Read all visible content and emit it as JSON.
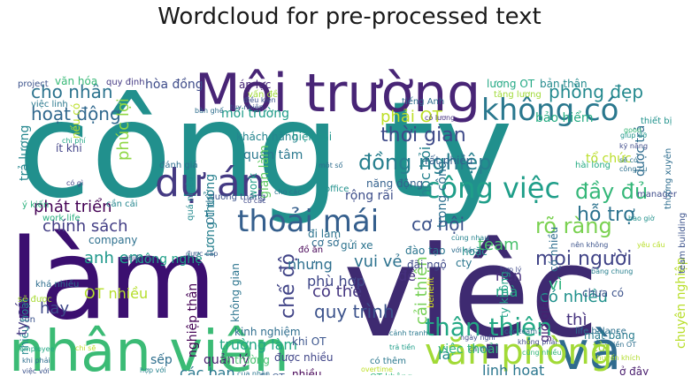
{
  "chart_data": {
    "type": "wordcloud",
    "title": "Wordcloud for pre-processed text",
    "words": [
      {
        "text": "công ty",
        "color": "#21908d"
      },
      {
        "text": "làm",
        "color": "#3b0f70"
      },
      {
        "text": "việc",
        "color": "#3e2a71"
      },
      {
        "text": "nhân viên",
        "color": "#3bbb75"
      },
      {
        "text": "Môi trường",
        "color": "#482576"
      },
      {
        "text": "dự án",
        "color": "#443a83"
      },
      {
        "text": "và",
        "color": "#2f6b8e"
      },
      {
        "text": "văn phòng",
        "color": "#a2da37"
      },
      {
        "text": "không có",
        "color": "#2a788e"
      },
      {
        "text": "công việc",
        "color": "#1f9e89"
      },
      {
        "text": "thoải mái",
        "color": "#355f8d"
      },
      {
        "text": "thân thiện",
        "color": "#23a884"
      },
      {
        "text": "đồng nghiệp",
        "color": "#277f8e"
      },
      {
        "text": "thời gian",
        "color": "#3e4a89"
      },
      {
        "text": "cho nhân",
        "color": "#2c738e"
      },
      {
        "text": "hoạt động",
        "color": "#31688e"
      },
      {
        "text": "mọi người",
        "color": "#414487"
      },
      {
        "text": "rõ ràng",
        "color": "#7ad151"
      },
      {
        "text": "có nhiều",
        "color": "#21918c"
      },
      {
        "text": "cơ hội",
        "color": "#3b528b"
      },
      {
        "text": "chế độ",
        "color": "#414487"
      },
      {
        "text": "quy trình",
        "color": "#3b528b"
      },
      {
        "text": "phòng đẹp",
        "color": "#23898e"
      },
      {
        "text": "đầy đủ",
        "color": "#35b779"
      },
      {
        "text": "hỗ trợ",
        "color": "#2c728e"
      },
      {
        "text": "phát triển",
        "color": "#440154"
      },
      {
        "text": "chính sách",
        "color": "#433e85"
      },
      {
        "text": "phúc lợi",
        "color": "#8fd744"
      },
      {
        "text": "phải OT",
        "color": "#bddf26"
      },
      {
        "text": "anh em",
        "color": "#1f988b"
      },
      {
        "text": "có thể",
        "color": "#453781"
      },
      {
        "text": "cải thiện",
        "color": "#75d054"
      },
      {
        "text": "vui vẻ",
        "color": "#2c728e"
      },
      {
        "text": "OT nhiều",
        "color": "#b5de2b"
      },
      {
        "text": "hay",
        "color": "#3e4989"
      },
      {
        "text": "thì",
        "color": "#46327e"
      },
      {
        "text": "vì",
        "color": "#2db27d"
      },
      {
        "text": "nên",
        "color": "#472d7b"
      },
      {
        "text": "mà",
        "color": "#22a884"
      },
      {
        "text": "team",
        "color": "#4ac16d"
      },
      {
        "text": "học hỏi",
        "color": "#26828e"
      },
      {
        "text": "trong công",
        "color": "#2d708e"
      },
      {
        "text": "có nhiều",
        "color": "#2e6e8e"
      },
      {
        "text": "chuyên nghiệp",
        "color": "#b8de29"
      },
      {
        "text": "giờ giấc",
        "color": "#481f70"
      },
      {
        "text": "linh hoạt",
        "color": "#2a768e"
      },
      {
        "text": "là",
        "color": "#228c8d"
      },
      {
        "text": "việc thoải",
        "color": "#30b47d"
      },
      {
        "text": "các bạn",
        "color": "#2a788e"
      },
      {
        "text": "quản lý",
        "color": "#481b6d"
      },
      {
        "text": "trường làm",
        "color": "#22a785"
      },
      {
        "text": "phù hợp",
        "color": "#3f4788"
      },
      {
        "text": "nhưng",
        "color": "#2e6f8e"
      },
      {
        "text": "công nghệ",
        "color": "#1fa088"
      },
      {
        "text": "nghiệp thân",
        "color": "#440154"
      },
      {
        "text": "mối trường",
        "color": "#1e9c89"
      },
      {
        "text": "quan tâm",
        "color": "#2a788e"
      },
      {
        "text": "gian làm",
        "color": "#5ec962"
      },
      {
        "text": "lương thưởng",
        "color": "#27808e"
      },
      {
        "text": "bảo hiểm",
        "color": "#25ab82"
      },
      {
        "text": "được trả",
        "color": "#2f6c8e"
      },
      {
        "text": "lương OT",
        "color": "#22a884"
      },
      {
        "text": "bản thân",
        "color": "#238a8d"
      },
      {
        "text": "nhiều hoạt",
        "color": "#23898e"
      },
      {
        "text": "ty có",
        "color": "#453882"
      },
      {
        "text": "khá nhiều",
        "color": "#2e6d8e"
      },
      {
        "text": "sẽ được",
        "color": "#a8db34"
      },
      {
        "text": "trả lương",
        "color": "#24878e"
      },
      {
        "text": "hòa đồng",
        "color": "#3e4c8a"
      },
      {
        "text": "văn hóa",
        "color": "#38b977"
      },
      {
        "text": "quy định",
        "color": "#443983"
      },
      {
        "text": "áp lực",
        "color": "#482677"
      },
      {
        "text": "nếu có",
        "color": "#bade28"
      },
      {
        "text": "ít khi",
        "color": "#414287"
      },
      {
        "text": "đánh giá",
        "color": "#2e6e8e"
      },
      {
        "text": "khách hàng",
        "color": "#25858e"
      },
      {
        "text": "hiện tại",
        "color": "#1f958b"
      },
      {
        "text": "thiết bị",
        "color": "#20928c"
      },
      {
        "text": "rất nhiều",
        "color": "#34608d"
      },
      {
        "text": "tổ chức",
        "color": "#bade28"
      },
      {
        "text": "rộng rãi",
        "color": "#3d4e8a"
      },
      {
        "text": "năng động",
        "color": "#34618d"
      },
      {
        "text": "đi làm",
        "color": "#2c738e"
      },
      {
        "text": "cơ sở",
        "color": "#2e6d8e"
      },
      {
        "text": "đồ ăn",
        "color": "#440154"
      },
      {
        "text": "gửi xe",
        "color": "#2c738e"
      },
      {
        "text": "đào tạo",
        "color": "#2b758e"
      },
      {
        "text": "đãi ngộ",
        "color": "#3e4989"
      },
      {
        "text": "cty",
        "color": "#2a768e"
      },
      {
        "text": "hoặc",
        "color": "#21918c"
      },
      {
        "text": "benefit",
        "color": "#d2e21b"
      },
      {
        "text": "đề",
        "color": "#46307e"
      },
      {
        "text": "ty không",
        "color": "#1fa287"
      },
      {
        "text": "không gian",
        "color": "#2b748e"
      },
      {
        "text": "kinh nghiệm",
        "color": "#2e6e8e"
      },
      {
        "text": "khi OT",
        "color": "#3a548c"
      },
      {
        "text": "được nhiều",
        "color": "#404588"
      },
      {
        "text": "nhiều",
        "color": "#440154"
      },
      {
        "text": "OT thì",
        "color": "#2b758e"
      },
      {
        "text": "company",
        "color": "#2d708e"
      },
      {
        "text": "work",
        "color": "#1f9f88"
      },
      {
        "text": "sếp",
        "color": "#2e6f8e"
      },
      {
        "text": "từ",
        "color": "#a0da39"
      },
      {
        "text": "chưa có",
        "color": "#3b528b"
      },
      {
        "text": "mặt bằng",
        "color": "#287c8e"
      },
      {
        "text": "có thêm",
        "color": "#2a788e"
      },
      {
        "text": "ra trường",
        "color": "#48c16e"
      },
      {
        "text": "độ OT",
        "color": "#38598c"
      },
      {
        "text": "OT không",
        "color": "#30b57b"
      },
      {
        "text": "overtime",
        "color": "#bddf26"
      },
      {
        "text": "ở đây",
        "color": "#481b6d"
      },
      {
        "text": "life balance",
        "color": "#2d708e"
      },
      {
        "text": "team building",
        "color": "#3b528b"
      },
      {
        "text": "manager",
        "color": "#3e4c8a"
      },
      {
        "text": "office",
        "color": "#21918c"
      },
      {
        "text": "project",
        "color": "#3b528b"
      },
      {
        "text": "việc linh",
        "color": "#2a788e"
      },
      {
        "text": "giúp đỡ",
        "color": "#1f958b"
      },
      {
        "text": "thưởng xuyên",
        "color": "#2e6d8e"
      },
      {
        "text": "tiếng Anh",
        "color": "#2e6d8e"
      },
      {
        "text": "cần cải",
        "color": "#24868e"
      },
      {
        "text": "tăng lương",
        "color": "#a0da39"
      },
      {
        "text": "lương tháng",
        "color": "#3b528b"
      },
      {
        "text": "hài lòng",
        "color": "#25ab82"
      },
      {
        "text": "work life",
        "color": "#29af7f"
      },
      {
        "text": "ý kiến",
        "color": "#2db27d"
      },
      {
        "text": "có lương",
        "color": "#46307e"
      },
      {
        "text": "quá nhiều",
        "color": "#23898e"
      },
      {
        "text": "có các",
        "color": "#3f4889"
      },
      {
        "text": "bàn ghế",
        "color": "#2e6e8e"
      },
      {
        "text": "điều kiện",
        "color": "#3b528b"
      },
      {
        "text": "chi phí",
        "color": "#22a785"
      },
      {
        "text": "ngày nghỉ",
        "color": "#3e4a89"
      },
      {
        "text": "tiền OT",
        "color": "#2e6f8e"
      },
      {
        "text": "khuyến khích",
        "color": "#b2dd2d"
      },
      {
        "text": "vấn đề",
        "color": "#a0da39"
      },
      {
        "text": "được cấp",
        "color": "#38598c"
      },
      {
        "text": "nhiều dự",
        "color": "#433e85"
      },
      {
        "text": "tuy nhiên",
        "color": "#3b528b"
      },
      {
        "text": "một số",
        "color": "#2e6d8e"
      },
      {
        "text": "kỹ năng",
        "color": "#3e4a89"
      },
      {
        "text": "sẽ có",
        "color": "#2c738e"
      },
      {
        "text": "công cụ",
        "color": "#2d708e"
      },
      {
        "text": "good",
        "color": "#37b878"
      },
      {
        "text": "cho các",
        "color": "#2b748e"
      },
      {
        "text": "có gì",
        "color": "#414487"
      },
      {
        "text": "bao giờ",
        "color": "#21918c"
      },
      {
        "text": "cùng nhau",
        "color": "#26828e"
      },
      {
        "text": "với các",
        "color": "#2e6d8e"
      },
      {
        "text": "còn",
        "color": "#3b528b"
      },
      {
        "text": "employee",
        "color": "#22a884"
      },
      {
        "text": "chỉ sẽ",
        "color": "#bddf26"
      },
      {
        "text": "khi phải",
        "color": "#2e6e8e"
      },
      {
        "text": "việc với",
        "color": "#3b528b"
      },
      {
        "text": "hợp với",
        "color": "#26828e"
      },
      {
        "text": "của nhân",
        "color": "#2b758e"
      },
      {
        "text": "trả tiền",
        "color": "#1f9e89"
      },
      {
        "text": "cả thể",
        "color": "#2e6d8e"
      },
      {
        "text": "hợp lý",
        "color": "#3e4989"
      },
      {
        "text": "bằng chung",
        "color": "#277f8e"
      },
      {
        "text": "nên không",
        "color": "#3b528b"
      },
      {
        "text": "yêu cầu",
        "color": "#b8de29"
      },
      {
        "text": "cảnh tranh",
        "color": "#2a788e"
      },
      {
        "text": "các team",
        "color": "#2e6e8e"
      },
      {
        "text": "không phải",
        "color": "#3e4a89"
      },
      {
        "text": "cũng nhiều",
        "color": "#35b779"
      }
    ]
  }
}
